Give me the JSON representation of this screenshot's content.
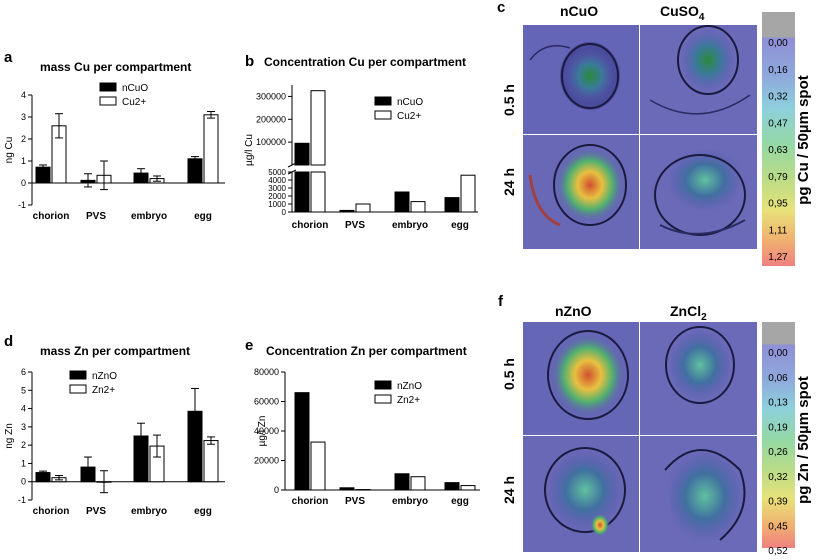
{
  "panels": {
    "a": {
      "letter": "a",
      "title": "mass Cu per compartment",
      "ylabel": "ng Cu"
    },
    "b": {
      "letter": "b",
      "title": "Concentration Cu per compartment",
      "ylabel": "µg/l Cu"
    },
    "c": {
      "letter": "c",
      "col1": "nCuO",
      "col2": "CuSO",
      "col2_sub": "4",
      "row1": "0.5 h",
      "row2": "24 h",
      "scale_label": "pg Cu / 50µm spot",
      "scale_ticks": [
        "0,00",
        "0,16",
        "0,32",
        "0,47",
        "0,63",
        "0,79",
        "0,95",
        "1,11",
        "1,27"
      ]
    },
    "d": {
      "letter": "d",
      "title": "mass Zn per compartment",
      "ylabel": "ng Zn"
    },
    "e": {
      "letter": "e",
      "title": "Concentration Zn per compartment",
      "ylabel": "µg/l Zn"
    },
    "f": {
      "letter": "f",
      "col1": "nZnO",
      "col2": "ZnCl",
      "col2_sub": "2",
      "row1": "0.5 h",
      "row2": "24 h",
      "scale_label": "pg Zn / 50µm spot",
      "scale_ticks": [
        "0,00",
        "0,06",
        "0,13",
        "0,19",
        "0,26",
        "0,32",
        "0,39",
        "0,45",
        "0,52"
      ]
    }
  },
  "colors": {
    "bar_dark": "#000000",
    "bar_light": "#ffffff",
    "heat_gray": "#9a9a9a"
  },
  "chart_data": [
    {
      "id": "a",
      "type": "bar",
      "title": "mass Cu per compartment",
      "xlabel": "",
      "ylabel": "ng Cu",
      "categories": [
        "chorion",
        "PVS",
        "embryo",
        "egg"
      ],
      "ylim": [
        -1,
        4
      ],
      "yticks": [
        -1,
        0,
        1,
        2,
        3,
        4
      ],
      "series": [
        {
          "name": "nCuO",
          "fill": "dark",
          "values": [
            0.72,
            0.12,
            0.45,
            1.1
          ],
          "errors": [
            0.1,
            0.3,
            0.2,
            0.1
          ]
        },
        {
          "name": "Cu2+",
          "fill": "light",
          "values": [
            2.6,
            0.35,
            0.2,
            3.1
          ],
          "errors": [
            0.55,
            0.65,
            0.12,
            0.15
          ]
        }
      ],
      "legend": "top-right"
    },
    {
      "id": "b",
      "type": "bar",
      "title": "Concentration Cu per compartment",
      "xlabel": "",
      "ylabel": "µg/l Cu",
      "categories": [
        "chorion",
        "PVS",
        "embryo",
        "egg"
      ],
      "broken_axis": true,
      "yticks_lower": [
        0,
        1000,
        2000,
        3000,
        4000,
        5000
      ],
      "yticks_upper": [
        100000,
        200000,
        300000
      ],
      "series": [
        {
          "name": "nCuO",
          "fill": "dark",
          "values": [
            95000,
            200,
            2500,
            1800
          ]
        },
        {
          "name": "Cu2+",
          "fill": "light",
          "values": [
            325000,
            1000,
            1300,
            4600
          ]
        }
      ],
      "legend": "top-right"
    },
    {
      "id": "d",
      "type": "bar",
      "title": "mass Zn per compartment",
      "xlabel": "",
      "ylabel": "ng Zn",
      "categories": [
        "chorion",
        "PVS",
        "embryo",
        "egg"
      ],
      "ylim": [
        -1,
        6
      ],
      "yticks": [
        -1,
        0,
        1,
        2,
        3,
        4,
        5,
        6
      ],
      "series": [
        {
          "name": "nZnO",
          "fill": "dark",
          "values": [
            0.5,
            0.8,
            2.5,
            3.85
          ],
          "errors": [
            0.08,
            0.55,
            0.7,
            1.25
          ]
        },
        {
          "name": "Zn2+",
          "fill": "light",
          "values": [
            0.22,
            0.0,
            1.95,
            2.25
          ],
          "errors": [
            0.12,
            0.6,
            0.6,
            0.2
          ]
        }
      ],
      "legend": "top-left"
    },
    {
      "id": "e",
      "type": "bar",
      "title": "Concentration Zn per compartment",
      "xlabel": "",
      "ylabel": "µg/l Zn",
      "categories": [
        "chorion",
        "PVS",
        "embryo",
        "egg"
      ],
      "ylim": [
        0,
        80000
      ],
      "yticks": [
        0,
        20000,
        40000,
        60000,
        80000
      ],
      "series": [
        {
          "name": "nZnO",
          "fill": "dark",
          "values": [
            66000,
            1500,
            11000,
            5000
          ]
        },
        {
          "name": "Zn2+",
          "fill": "light",
          "values": [
            32500,
            300,
            9000,
            3000
          ]
        }
      ],
      "legend": "top-right"
    }
  ]
}
